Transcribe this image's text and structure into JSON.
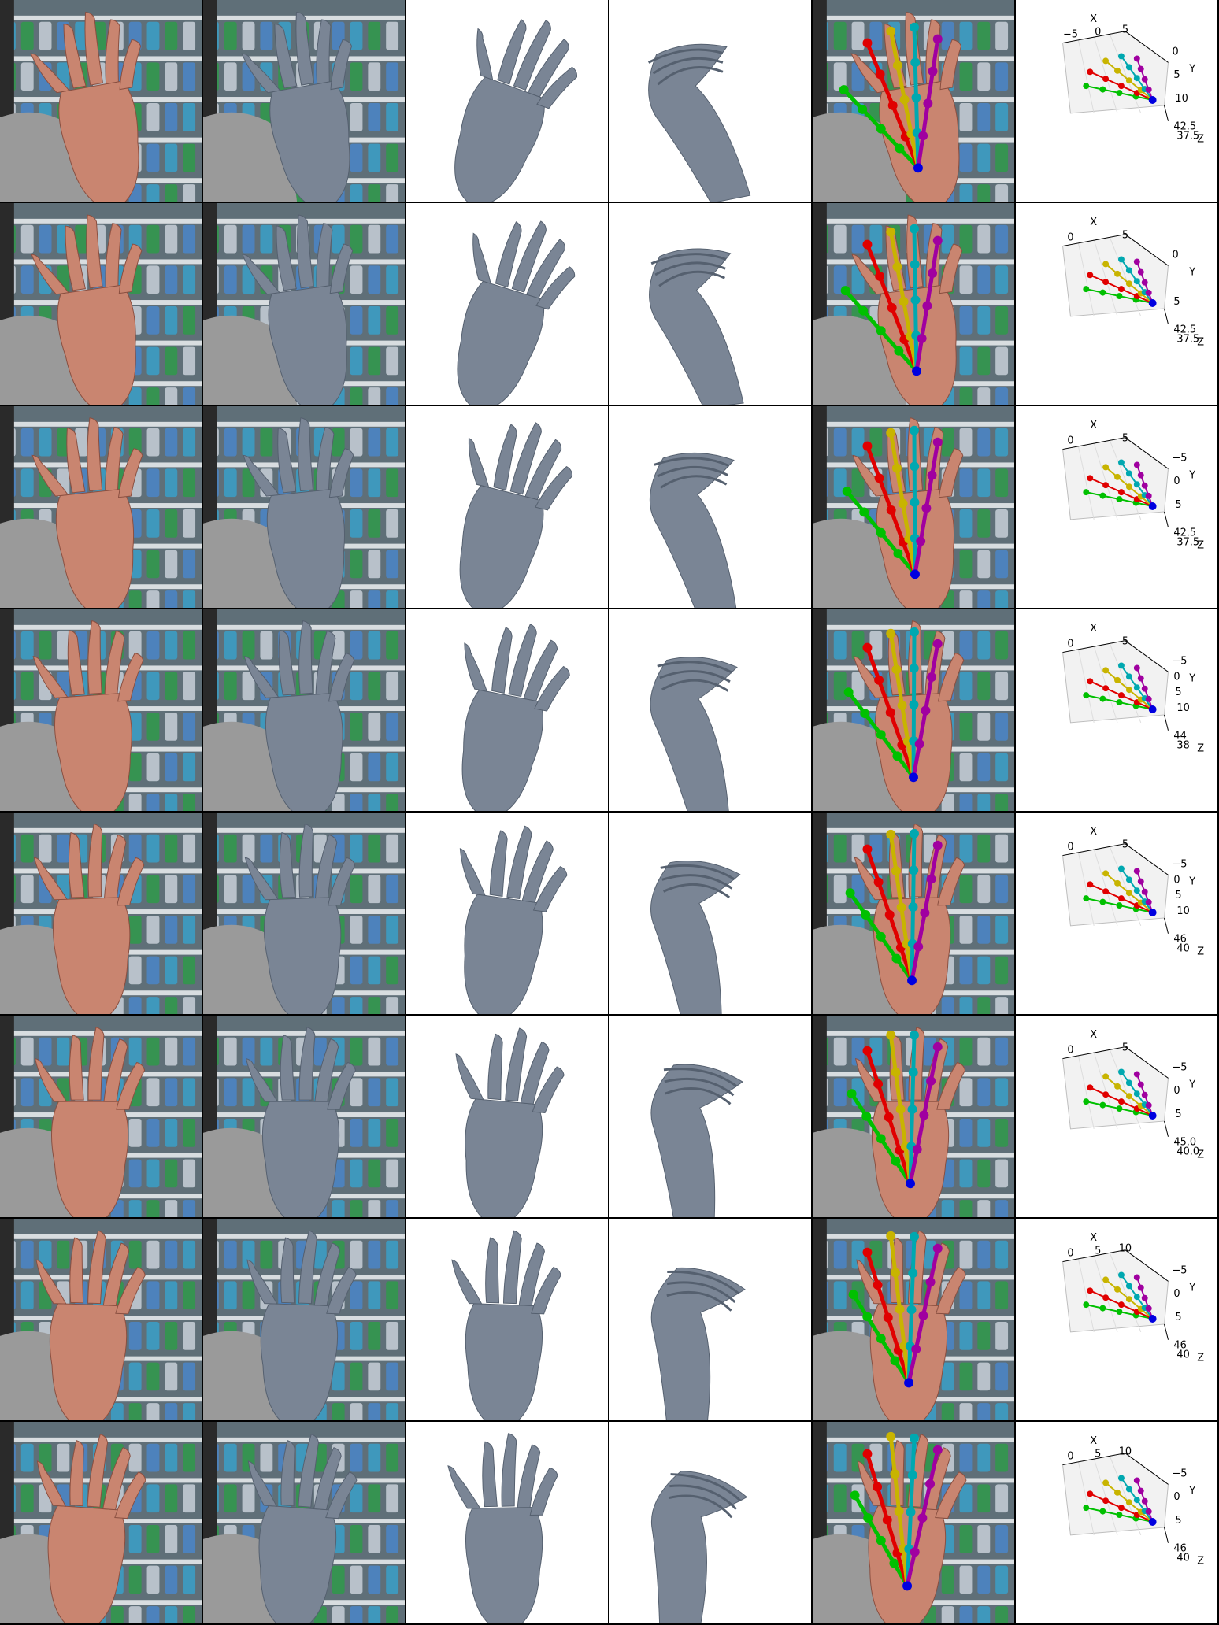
{
  "columns": [
    {
      "kind": "photo"
    },
    {
      "kind": "mesh-overlay"
    },
    {
      "kind": "mesh-front"
    },
    {
      "kind": "mesh-side"
    },
    {
      "kind": "keypoint-overlay"
    },
    {
      "kind": "keypoint-3d-plot"
    }
  ],
  "colors": {
    "mesh": "#7a8595",
    "mesh_dark": "#55606f",
    "skin": "#c98570",
    "background_store": "#5f6f78",
    "finger_thumb": "#00c000",
    "finger_index": "#e00000",
    "finger_middle": "#c8b400",
    "finger_ring": "#00a8b0",
    "finger_pinky": "#a000a0",
    "wrist": "#0000e0"
  },
  "rows": [
    {
      "plot": {
        "x_label": "X",
        "y_label": "Y",
        "z_label": "Z",
        "x_ticks": [
          "−5",
          "0",
          "5"
        ],
        "y_ticks": [
          "0",
          "5",
          "10"
        ],
        "z_ticks": [
          "42.5",
          "37.5"
        ]
      }
    },
    {
      "plot": {
        "x_label": "X",
        "y_label": "Y",
        "z_label": "Z",
        "x_ticks": [
          "0",
          "5"
        ],
        "y_ticks": [
          "0",
          "5"
        ],
        "z_ticks": [
          "42.5",
          "37.5"
        ]
      }
    },
    {
      "plot": {
        "x_label": "X",
        "y_label": "Y",
        "z_label": "Z",
        "x_ticks": [
          "0",
          "5"
        ],
        "y_ticks": [
          "−5",
          "0",
          "5"
        ],
        "z_ticks": [
          "42.5",
          "37.5"
        ]
      }
    },
    {
      "plot": {
        "x_label": "X",
        "y_label": "Y",
        "z_label": "Z",
        "x_ticks": [
          "0",
          "5"
        ],
        "y_ticks": [
          "−5",
          "0",
          "5",
          "10"
        ],
        "z_ticks": [
          "44",
          "38"
        ]
      }
    },
    {
      "plot": {
        "x_label": "X",
        "y_label": "Y",
        "z_label": "Z",
        "x_ticks": [
          "0",
          "5"
        ],
        "y_ticks": [
          "−5",
          "0",
          "5",
          "10"
        ],
        "z_ticks": [
          "46",
          "40"
        ]
      }
    },
    {
      "plot": {
        "x_label": "X",
        "y_label": "Y",
        "z_label": "Z",
        "x_ticks": [
          "0",
          "5"
        ],
        "y_ticks": [
          "−5",
          "0",
          "5"
        ],
        "z_ticks": [
          "45.0",
          "40.0"
        ]
      }
    },
    {
      "plot": {
        "x_label": "X",
        "y_label": "Y",
        "z_label": "Z",
        "x_ticks": [
          "0",
          "5",
          "10"
        ],
        "y_ticks": [
          "−5",
          "0",
          "5"
        ],
        "z_ticks": [
          "46",
          "40"
        ]
      }
    },
    {
      "plot": {
        "x_label": "X",
        "y_label": "Y",
        "z_label": "Z",
        "x_ticks": [
          "0",
          "5",
          "10"
        ],
        "y_ticks": [
          "−5",
          "0",
          "5"
        ],
        "z_ticks": [
          "46",
          "40"
        ]
      }
    }
  ]
}
